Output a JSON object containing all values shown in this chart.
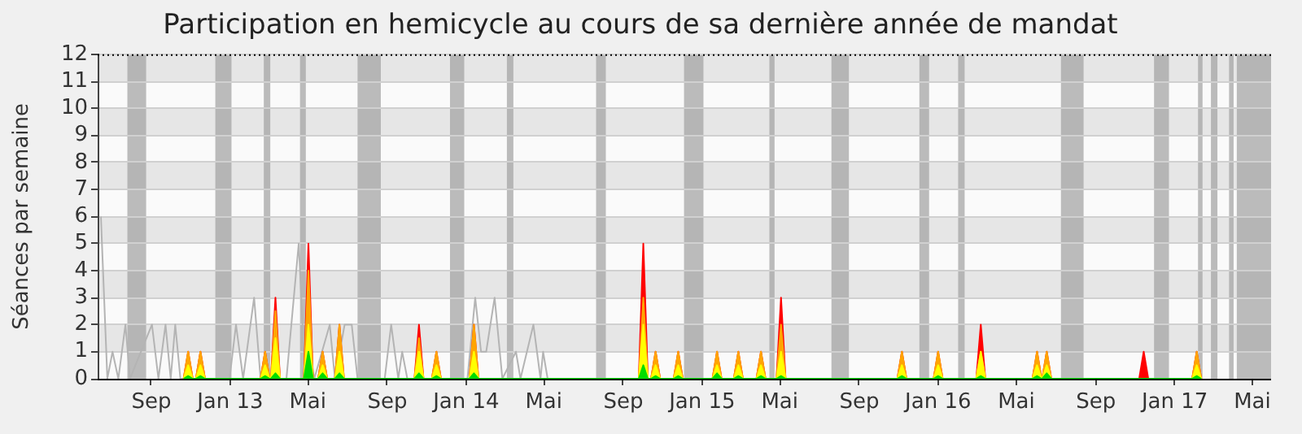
{
  "chart_data": {
    "type": "area",
    "title": "Participation en hemicycle au cours de sa dernière année de mandat",
    "ylabel": "Séances par semaine",
    "xlim": [
      "2012-06-10",
      "2017-05-30"
    ],
    "xticks": [
      {
        "value": "2012-09-01",
        "label": "Sep"
      },
      {
        "value": "2013-01-01",
        "label": "Jan 13"
      },
      {
        "value": "2013-05-01",
        "label": "Mai"
      },
      {
        "value": "2013-09-01",
        "label": "Sep"
      },
      {
        "value": "2014-01-01",
        "label": "Jan 14"
      },
      {
        "value": "2014-05-01",
        "label": "Mai"
      },
      {
        "value": "2014-09-01",
        "label": "Sep"
      },
      {
        "value": "2015-01-01",
        "label": "Jan 15"
      },
      {
        "value": "2015-05-01",
        "label": "Mai"
      },
      {
        "value": "2015-09-01",
        "label": "Sep"
      },
      {
        "value": "2016-01-01",
        "label": "Jan 16"
      },
      {
        "value": "2016-05-01",
        "label": "Mai"
      },
      {
        "value": "2016-09-01",
        "label": "Sep"
      },
      {
        "value": "2017-01-01",
        "label": "Jan 17"
      },
      {
        "value": "2017-05-01",
        "label": "Mai"
      }
    ],
    "ylim": [
      0,
      12
    ],
    "yticks": [
      0,
      1,
      2,
      3,
      4,
      5,
      6,
      7,
      8,
      9,
      10,
      11,
      12
    ],
    "grid": "y",
    "x": [
      "2012-10-21",
      "2012-10-28",
      "2012-11-04",
      "2012-11-09",
      "2012-11-16",
      "2012-11-23",
      "2013-02-17",
      "2013-02-24",
      "2013-03-03",
      "2013-03-05",
      "2013-03-12",
      "2013-03-19",
      "2013-04-25",
      "2013-05-02",
      "2013-05-09",
      "2013-05-17",
      "2013-05-24",
      "2013-05-31",
      "2013-06-12",
      "2013-06-19",
      "2013-06-26",
      "2013-10-13",
      "2013-10-20",
      "2013-10-27",
      "2013-11-09",
      "2013-11-16",
      "2013-11-23",
      "2014-01-06",
      "2014-01-13",
      "2014-01-20",
      "2014-09-25",
      "2014-10-02",
      "2014-10-09",
      "2014-10-14",
      "2014-10-21",
      "2014-10-28",
      "2014-11-18",
      "2014-11-25",
      "2014-12-02",
      "2015-01-17",
      "2015-01-24",
      "2015-01-31",
      "2015-02-19",
      "2015-02-26",
      "2015-03-05",
      "2015-03-26",
      "2015-04-02",
      "2015-04-09",
      "2015-04-26",
      "2015-05-03",
      "2015-05-10",
      "2015-10-30",
      "2015-11-06",
      "2015-11-13",
      "2015-12-25",
      "2016-01-01",
      "2016-01-08",
      "2016-02-29",
      "2016-03-07",
      "2016-03-14",
      "2016-05-26",
      "2016-06-02",
      "2016-06-09",
      "2016-06-10",
      "2016-06-17",
      "2016-06-24",
      "2016-11-07",
      "2016-11-14",
      "2016-11-21",
      "2017-01-28",
      "2017-02-04",
      "2017-02-11"
    ],
    "series": [
      {
        "type": "line",
        "color": "#b4b4b4",
        "x": [
          "2012-06-15",
          "2012-06-25",
          "2012-07-03",
          "2012-07-12",
          "2012-07-23",
          "2012-07-30",
          "2012-09-02",
          "2012-09-12",
          "2012-09-23",
          "2012-10-01",
          "2012-10-08",
          "2012-10-16",
          "2012-12-31",
          "2013-01-10",
          "2013-01-21",
          "2013-02-07",
          "2013-02-17",
          "2013-03-29",
          "2013-04-17",
          "2013-04-25",
          "2013-05-04",
          "2013-05-11",
          "2013-06-04",
          "2013-06-12",
          "2013-06-27",
          "2013-07-08",
          "2013-07-17",
          "2013-08-28",
          "2013-09-07",
          "2013-09-18",
          "2013-09-24",
          "2013-10-02",
          "2014-01-03",
          "2014-01-15",
          "2014-01-24",
          "2014-02-01",
          "2014-02-14",
          "2014-02-26",
          "2014-03-19",
          "2014-03-26",
          "2014-04-15",
          "2014-04-26",
          "2014-04-30",
          "2014-05-07"
        ],
        "values": [
          6,
          0,
          1,
          0,
          2,
          0,
          2,
          0,
          2,
          0,
          2,
          0,
          0,
          2,
          0,
          3,
          0,
          0,
          5,
          1,
          1,
          0,
          2,
          0,
          2,
          2,
          0,
          0,
          2,
          0,
          1,
          0,
          0,
          3,
          1,
          1,
          3,
          0,
          1,
          0,
          2,
          0,
          1,
          0
        ]
      },
      {
        "color": "#ff0000",
        "values": [
          0,
          1,
          0,
          0,
          1,
          0,
          0,
          1,
          0,
          0,
          3,
          0,
          0,
          5,
          0,
          0,
          1,
          0,
          0,
          2,
          0,
          0,
          2,
          0,
          0,
          1,
          0,
          0,
          2,
          0,
          0,
          5,
          0,
          0,
          1,
          0,
          0,
          1,
          0,
          0,
          1,
          0,
          0,
          1,
          0,
          0,
          1,
          0,
          0,
          3,
          0,
          0,
          1,
          0,
          0,
          1,
          0,
          0,
          2,
          0,
          0,
          1,
          0,
          0,
          1,
          0,
          0,
          1,
          0,
          0,
          1,
          0
        ]
      },
      {
        "color": "#ffa500",
        "values": [
          0,
          1,
          0,
          0,
          1,
          0,
          0,
          1,
          0,
          0,
          2.5,
          0,
          0,
          4,
          0,
          0,
          1,
          0,
          0,
          2,
          0,
          0,
          1.5,
          0,
          0,
          1,
          0,
          0,
          2,
          0,
          0,
          3,
          0,
          0,
          1,
          0,
          0,
          1,
          0,
          0,
          1,
          0,
          0,
          1,
          0,
          0,
          1,
          0,
          0,
          2,
          0,
          0,
          1,
          0,
          0,
          1,
          0,
          0,
          1,
          0,
          0,
          1,
          0,
          0,
          1,
          0,
          0,
          0,
          0,
          0,
          1,
          0
        ]
      },
      {
        "color": "#ffff00",
        "values": [
          0,
          0.5,
          0,
          0,
          0.5,
          0,
          0,
          0.5,
          0,
          0,
          1.5,
          0,
          0,
          2,
          0,
          0,
          0.5,
          0,
          0,
          1,
          0,
          0,
          1,
          0,
          0,
          0.5,
          0,
          0,
          1,
          0,
          0,
          2,
          0,
          0,
          0.5,
          0,
          0,
          0.5,
          0,
          0,
          0.5,
          0,
          0,
          0.5,
          0,
          0,
          0.5,
          0,
          0,
          1,
          0,
          0,
          0.5,
          0,
          0,
          0.5,
          0,
          0,
          1,
          0,
          0,
          0.5,
          0,
          0,
          0.5,
          0,
          0,
          0,
          0,
          0,
          0.5,
          0
        ]
      },
      {
        "color": "#00dd00",
        "values": [
          0,
          0.1,
          0,
          0,
          0.1,
          0,
          0,
          0.1,
          0,
          0,
          0.2,
          0,
          0,
          1,
          0,
          0,
          0.2,
          0,
          0,
          0.2,
          0,
          0,
          0.2,
          0,
          0,
          0.1,
          0,
          0,
          0.2,
          0,
          0,
          0.5,
          0,
          0,
          0.1,
          0,
          0,
          0.1,
          0,
          0,
          0.2,
          0,
          0,
          0.1,
          0,
          0,
          0.1,
          0,
          0,
          0.1,
          0,
          0,
          0.1,
          0,
          0,
          0.1,
          0,
          0,
          0.1,
          0,
          0,
          0.1,
          0,
          0,
          0.2,
          0,
          0,
          0,
          0,
          0,
          0.1,
          0
        ]
      }
    ],
    "bands": [
      {
        "axis": "x",
        "from": "2012-07-26",
        "to": "2012-08-24",
        "color": "#a0a0a0"
      },
      {
        "axis": "x",
        "from": "2012-12-09",
        "to": "2013-01-03",
        "color": "#a0a0a0"
      },
      {
        "axis": "x",
        "from": "2013-02-22",
        "to": "2013-03-04",
        "color": "#a0a0a0"
      },
      {
        "axis": "x",
        "from": "2013-04-19",
        "to": "2013-04-28",
        "color": "#a0a0a0"
      },
      {
        "axis": "x",
        "from": "2013-07-17",
        "to": "2013-08-22",
        "color": "#a0a0a0"
      },
      {
        "axis": "x",
        "from": "2013-12-07",
        "to": "2013-12-29",
        "color": "#a0a0a0"
      },
      {
        "axis": "x",
        "from": "2014-03-05",
        "to": "2014-03-15",
        "color": "#a0a0a0"
      },
      {
        "axis": "x",
        "from": "2014-07-21",
        "to": "2014-08-05",
        "color": "#a0a0a0"
      },
      {
        "axis": "x",
        "from": "2014-12-04",
        "to": "2015-01-03",
        "color": "#a0a0a0"
      },
      {
        "axis": "x",
        "from": "2015-04-15",
        "to": "2015-04-23",
        "color": "#a0a0a0"
      },
      {
        "axis": "x",
        "from": "2015-07-20",
        "to": "2015-08-16",
        "color": "#a0a0a0"
      },
      {
        "axis": "x",
        "from": "2015-12-03",
        "to": "2015-12-18",
        "color": "#a0a0a0"
      },
      {
        "axis": "x",
        "from": "2016-02-01",
        "to": "2016-02-11",
        "color": "#a0a0a0"
      },
      {
        "axis": "x",
        "from": "2016-07-09",
        "to": "2016-08-13",
        "color": "#a0a0a0"
      },
      {
        "axis": "x",
        "from": "2016-11-30",
        "to": "2016-12-23",
        "color": "#a0a0a0"
      },
      {
        "axis": "x",
        "from": "2017-02-06",
        "to": "2017-02-13",
        "color": "#a0a0a0"
      },
      {
        "axis": "x",
        "from": "2017-02-26",
        "to": "2017-03-08",
        "color": "#a0a0a0"
      },
      {
        "axis": "x",
        "from": "2017-03-26",
        "to": "2017-04-02",
        "color": "#a0a0a0"
      },
      {
        "axis": "x",
        "from": "2017-04-07",
        "to": "2017-05-30",
        "color": "#a0a0a0"
      }
    ]
  }
}
